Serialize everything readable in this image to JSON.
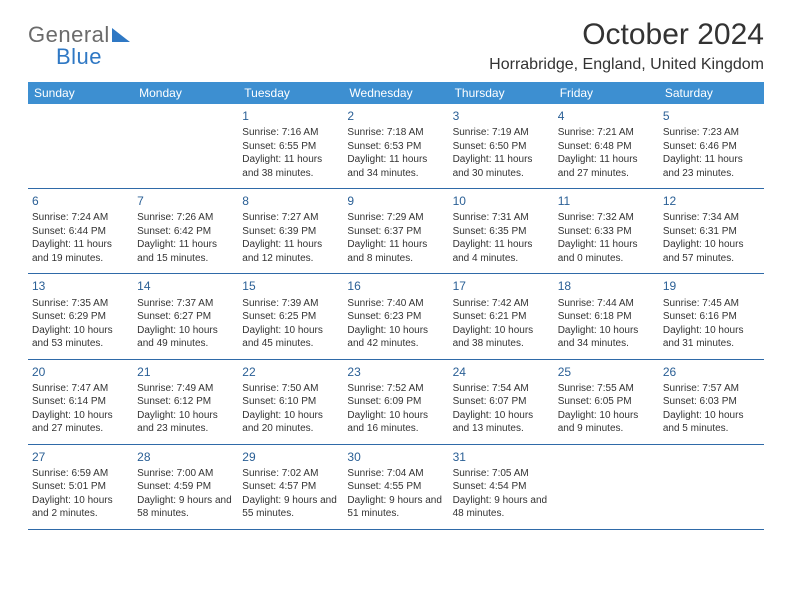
{
  "logo": {
    "part1": "General",
    "part2": "Blue"
  },
  "title": "October 2024",
  "location": "Horrabridge, England, United Kingdom",
  "colors": {
    "header_bg": "#3d8fd1",
    "header_text": "#ffffff",
    "row_border": "#2f6aa8",
    "daynum": "#2a5f95",
    "body_text": "#333333",
    "logo_gray": "#6b6b6b",
    "logo_blue": "#2f78c4"
  },
  "weekdays": [
    "Sunday",
    "Monday",
    "Tuesday",
    "Wednesday",
    "Thursday",
    "Friday",
    "Saturday"
  ],
  "weeks": [
    [
      null,
      null,
      {
        "n": "1",
        "sunrise": "7:16 AM",
        "sunset": "6:55 PM",
        "daylight": "11 hours and 38 minutes."
      },
      {
        "n": "2",
        "sunrise": "7:18 AM",
        "sunset": "6:53 PM",
        "daylight": "11 hours and 34 minutes."
      },
      {
        "n": "3",
        "sunrise": "7:19 AM",
        "sunset": "6:50 PM",
        "daylight": "11 hours and 30 minutes."
      },
      {
        "n": "4",
        "sunrise": "7:21 AM",
        "sunset": "6:48 PM",
        "daylight": "11 hours and 27 minutes."
      },
      {
        "n": "5",
        "sunrise": "7:23 AM",
        "sunset": "6:46 PM",
        "daylight": "11 hours and 23 minutes."
      }
    ],
    [
      {
        "n": "6",
        "sunrise": "7:24 AM",
        "sunset": "6:44 PM",
        "daylight": "11 hours and 19 minutes."
      },
      {
        "n": "7",
        "sunrise": "7:26 AM",
        "sunset": "6:42 PM",
        "daylight": "11 hours and 15 minutes."
      },
      {
        "n": "8",
        "sunrise": "7:27 AM",
        "sunset": "6:39 PM",
        "daylight": "11 hours and 12 minutes."
      },
      {
        "n": "9",
        "sunrise": "7:29 AM",
        "sunset": "6:37 PM",
        "daylight": "11 hours and 8 minutes."
      },
      {
        "n": "10",
        "sunrise": "7:31 AM",
        "sunset": "6:35 PM",
        "daylight": "11 hours and 4 minutes."
      },
      {
        "n": "11",
        "sunrise": "7:32 AM",
        "sunset": "6:33 PM",
        "daylight": "11 hours and 0 minutes."
      },
      {
        "n": "12",
        "sunrise": "7:34 AM",
        "sunset": "6:31 PM",
        "daylight": "10 hours and 57 minutes."
      }
    ],
    [
      {
        "n": "13",
        "sunrise": "7:35 AM",
        "sunset": "6:29 PM",
        "daylight": "10 hours and 53 minutes."
      },
      {
        "n": "14",
        "sunrise": "7:37 AM",
        "sunset": "6:27 PM",
        "daylight": "10 hours and 49 minutes."
      },
      {
        "n": "15",
        "sunrise": "7:39 AM",
        "sunset": "6:25 PM",
        "daylight": "10 hours and 45 minutes."
      },
      {
        "n": "16",
        "sunrise": "7:40 AM",
        "sunset": "6:23 PM",
        "daylight": "10 hours and 42 minutes."
      },
      {
        "n": "17",
        "sunrise": "7:42 AM",
        "sunset": "6:21 PM",
        "daylight": "10 hours and 38 minutes."
      },
      {
        "n": "18",
        "sunrise": "7:44 AM",
        "sunset": "6:18 PM",
        "daylight": "10 hours and 34 minutes."
      },
      {
        "n": "19",
        "sunrise": "7:45 AM",
        "sunset": "6:16 PM",
        "daylight": "10 hours and 31 minutes."
      }
    ],
    [
      {
        "n": "20",
        "sunrise": "7:47 AM",
        "sunset": "6:14 PM",
        "daylight": "10 hours and 27 minutes."
      },
      {
        "n": "21",
        "sunrise": "7:49 AM",
        "sunset": "6:12 PM",
        "daylight": "10 hours and 23 minutes."
      },
      {
        "n": "22",
        "sunrise": "7:50 AM",
        "sunset": "6:10 PM",
        "daylight": "10 hours and 20 minutes."
      },
      {
        "n": "23",
        "sunrise": "7:52 AM",
        "sunset": "6:09 PM",
        "daylight": "10 hours and 16 minutes."
      },
      {
        "n": "24",
        "sunrise": "7:54 AM",
        "sunset": "6:07 PM",
        "daylight": "10 hours and 13 minutes."
      },
      {
        "n": "25",
        "sunrise": "7:55 AM",
        "sunset": "6:05 PM",
        "daylight": "10 hours and 9 minutes."
      },
      {
        "n": "26",
        "sunrise": "7:57 AM",
        "sunset": "6:03 PM",
        "daylight": "10 hours and 5 minutes."
      }
    ],
    [
      {
        "n": "27",
        "sunrise": "6:59 AM",
        "sunset": "5:01 PM",
        "daylight": "10 hours and 2 minutes."
      },
      {
        "n": "28",
        "sunrise": "7:00 AM",
        "sunset": "4:59 PM",
        "daylight": "9 hours and 58 minutes."
      },
      {
        "n": "29",
        "sunrise": "7:02 AM",
        "sunset": "4:57 PM",
        "daylight": "9 hours and 55 minutes."
      },
      {
        "n": "30",
        "sunrise": "7:04 AM",
        "sunset": "4:55 PM",
        "daylight": "9 hours and 51 minutes."
      },
      {
        "n": "31",
        "sunrise": "7:05 AM",
        "sunset": "4:54 PM",
        "daylight": "9 hours and 48 minutes."
      },
      null,
      null
    ]
  ],
  "labels": {
    "sunrise": "Sunrise:",
    "sunset": "Sunset:",
    "daylight": "Daylight:"
  }
}
